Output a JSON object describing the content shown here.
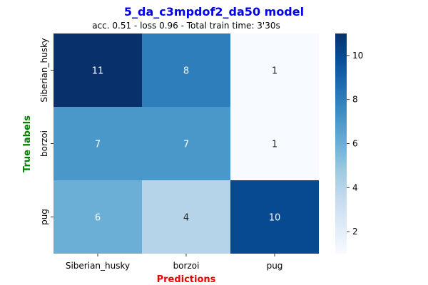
{
  "chart_data": {
    "type": "heatmap",
    "title": "5_da_c3mpdof2_da50 model",
    "subtitle": "acc. 0.51 - loss 0.96 - Total train time: 3'30s",
    "xlabel": "Predictions",
    "ylabel": "True labels",
    "x_categories": [
      "Siberian_husky",
      "borzoi",
      "pug"
    ],
    "y_categories": [
      "Siberian_husky",
      "borzoi",
      "pug"
    ],
    "values": [
      [
        11,
        8,
        1
      ],
      [
        7,
        7,
        1
      ],
      [
        6,
        4,
        10
      ]
    ],
    "colormap": "Blues",
    "color_range": [
      1,
      11
    ],
    "colorbar_ticks": [
      "2",
      "4",
      "6",
      "8",
      "10"
    ],
    "grid": false
  },
  "colors": {
    "title": "#0000ee",
    "xlabel": "#ee0000",
    "ylabel": "#008000"
  }
}
